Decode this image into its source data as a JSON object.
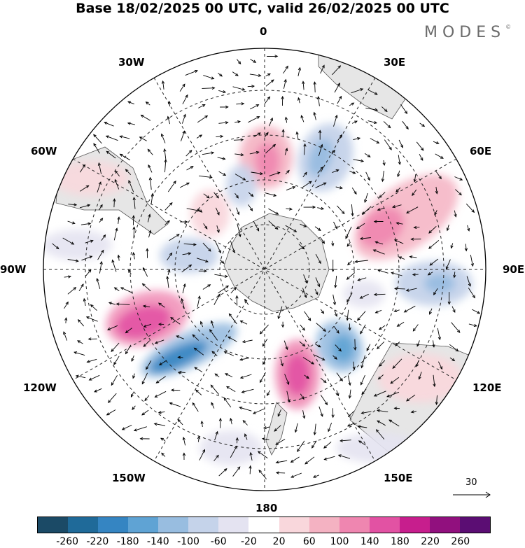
{
  "title": "Base 18/02/2025 00 UTC, valid 26/02/2025 00 UTC",
  "brand": "MODES",
  "brand_mark": "©",
  "longitude_labels": {
    "n0": "0",
    "e30": "30E",
    "e60": "60E",
    "e90": "90E",
    "e120": "120E",
    "e150": "150E",
    "s180": "180",
    "w150": "150W",
    "w120": "120W",
    "w90": "90W",
    "w60": "60W",
    "w30": "30W"
  },
  "reference_vector": "30",
  "colorbar": {
    "colors": [
      "#1b4a66",
      "#1f6a99",
      "#3585c2",
      "#5fa3d4",
      "#98bde0",
      "#c5d3ea",
      "#e4e3f1",
      "#ffffff",
      "#f9d7dc",
      "#f4b2c2",
      "#ef86b0",
      "#e252a3",
      "#c71e8d",
      "#91107e",
      "#5b0d73"
    ],
    "ticks": [
      "-260",
      "-220",
      "-180",
      "-140",
      "-100",
      "-60",
      "-20",
      "20",
      "60",
      "100",
      "140",
      "180",
      "220",
      "260"
    ]
  }
}
